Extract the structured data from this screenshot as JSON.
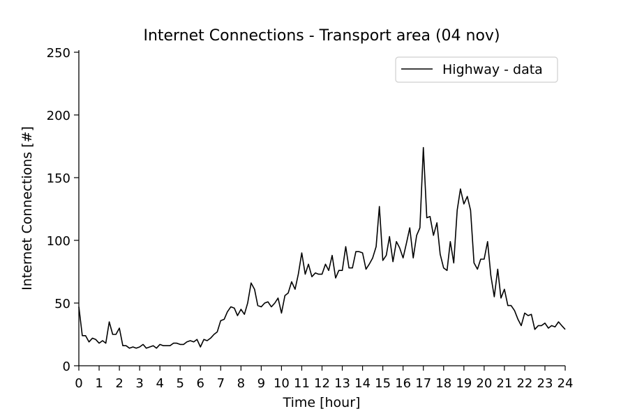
{
  "chart_data": {
    "type": "line",
    "title": "Internet Connections - Transport area (04 nov)",
    "xlabel": "Time [hour]",
    "ylabel": "Internet Connections [#]",
    "xlim": [
      0,
      24
    ],
    "ylim": [
      0,
      250
    ],
    "xticks": [
      0,
      1,
      2,
      3,
      4,
      5,
      6,
      7,
      8,
      9,
      10,
      11,
      12,
      13,
      14,
      15,
      16,
      17,
      18,
      19,
      20,
      21,
      22,
      23,
      24
    ],
    "yticks": [
      0,
      50,
      100,
      150,
      200,
      250
    ],
    "grid": false,
    "legend_position": "top-right",
    "series": [
      {
        "name": "Highway - data",
        "color": "#000000",
        "x": [
          0,
          0.17,
          0.33,
          0.5,
          0.67,
          0.83,
          1,
          1.17,
          1.33,
          1.5,
          1.67,
          1.83,
          2,
          2.17,
          2.33,
          2.5,
          2.67,
          2.83,
          3,
          3.17,
          3.33,
          3.5,
          3.67,
          3.83,
          4,
          4.17,
          4.33,
          4.5,
          4.67,
          4.83,
          5,
          5.17,
          5.33,
          5.5,
          5.67,
          5.83,
          6,
          6.17,
          6.33,
          6.5,
          6.67,
          6.83,
          7,
          7.17,
          7.33,
          7.5,
          7.67,
          7.83,
          8,
          8.17,
          8.33,
          8.5,
          8.67,
          8.83,
          9,
          9.17,
          9.33,
          9.5,
          9.67,
          9.83,
          10,
          10.17,
          10.33,
          10.5,
          10.67,
          10.83,
          11,
          11.17,
          11.33,
          11.5,
          11.67,
          11.83,
          12,
          12.17,
          12.33,
          12.5,
          12.67,
          12.83,
          13,
          13.17,
          13.33,
          13.5,
          13.67,
          13.83,
          14,
          14.17,
          14.33,
          14.5,
          14.67,
          14.83,
          15,
          15.17,
          15.33,
          15.5,
          15.67,
          15.83,
          16,
          16.17,
          16.33,
          16.5,
          16.67,
          16.83,
          17,
          17.17,
          17.33,
          17.5,
          17.67,
          17.83,
          18,
          18.17,
          18.33,
          18.5,
          18.67,
          18.83,
          19,
          19.17,
          19.33,
          19.5,
          19.67,
          19.83,
          20,
          20.17,
          20.33,
          20.5,
          20.67,
          20.83,
          21,
          21.17,
          21.33,
          21.5,
          21.67,
          21.83,
          22,
          22.17,
          22.33,
          22.5,
          22.67,
          22.83,
          23,
          23.17,
          23.33,
          23.5,
          23.67,
          23.83,
          24
        ],
        "y": [
          47,
          24,
          24,
          19,
          22,
          21,
          18,
          20,
          18,
          35,
          25,
          25,
          30,
          16,
          16,
          14,
          15,
          14,
          15,
          17,
          14,
          15,
          16,
          14,
          17,
          16,
          16,
          16,
          18,
          18,
          17,
          17,
          19,
          20,
          19,
          21,
          15,
          21,
          20,
          22,
          25,
          27,
          36,
          37,
          43,
          47,
          46,
          40,
          45,
          41,
          50,
          66,
          61,
          48,
          47,
          50,
          51,
          47,
          50,
          54,
          42,
          56,
          58,
          67,
          61,
          73,
          90,
          73,
          81,
          71,
          74,
          73,
          73,
          81,
          76,
          88,
          70,
          76,
          76,
          95,
          78,
          78,
          91,
          91,
          90,
          77,
          81,
          86,
          95,
          127,
          84,
          88,
          103,
          83,
          99,
          94,
          86,
          98,
          110,
          86,
          104,
          110,
          174,
          118,
          119,
          104,
          114,
          89,
          78,
          76,
          99,
          82,
          124,
          141,
          129,
          135,
          124,
          82,
          77,
          85,
          85,
          99,
          72,
          55,
          77,
          54,
          61,
          48,
          48,
          44,
          37,
          32,
          42,
          40,
          41,
          29,
          32,
          32,
          34,
          30,
          32,
          31,
          35,
          32,
          29
        ]
      }
    ]
  }
}
